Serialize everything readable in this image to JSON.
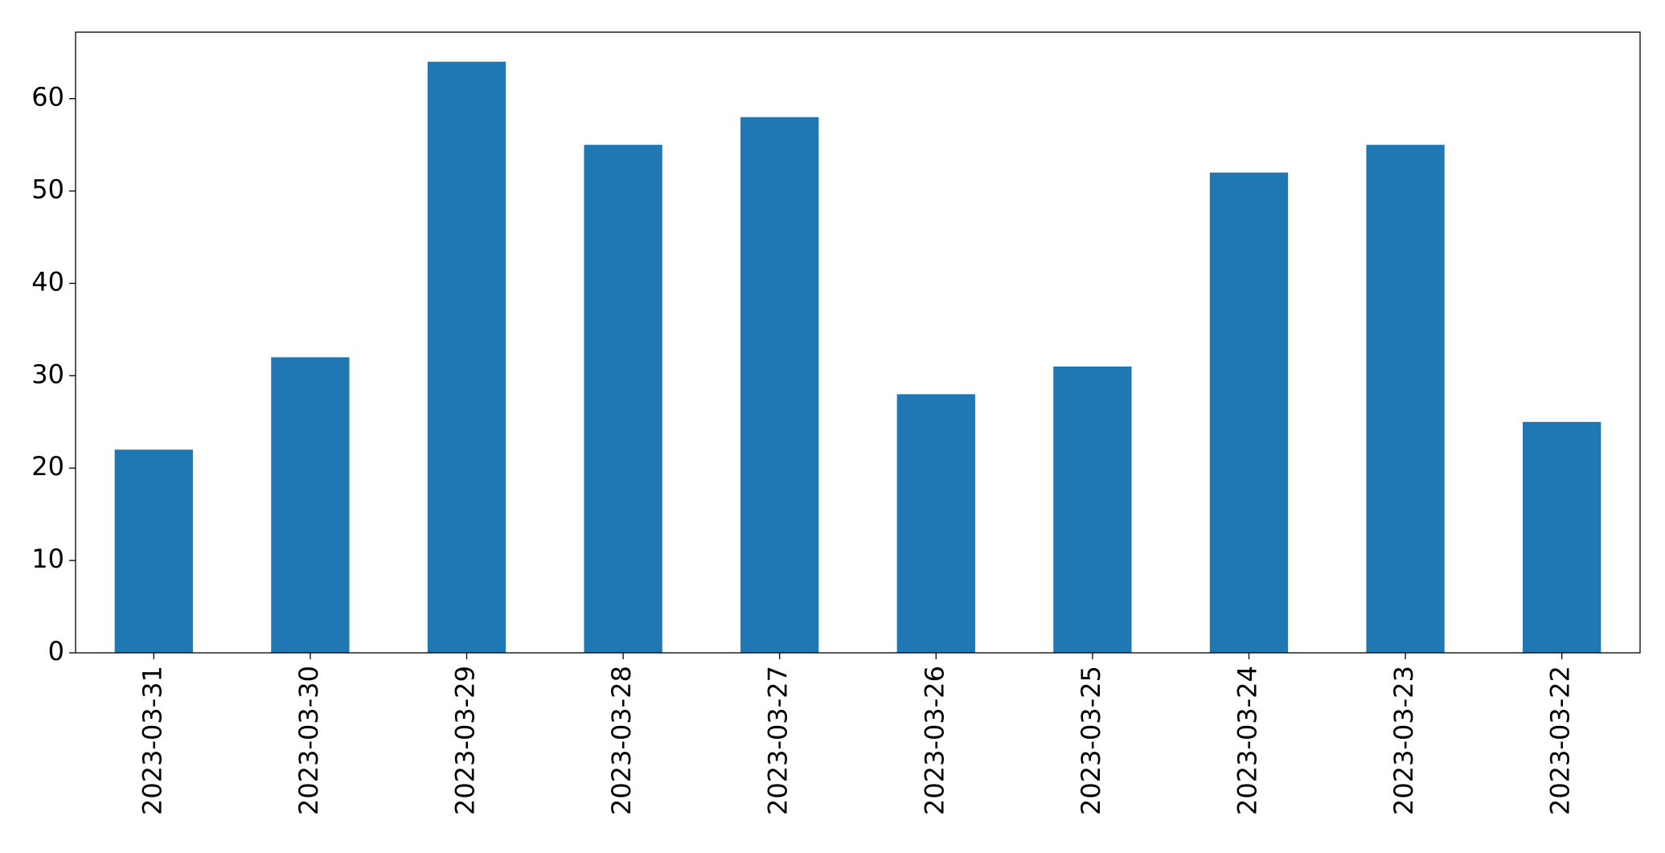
{
  "chart_data": {
    "type": "bar",
    "categories": [
      "2023-03-31",
      "2023-03-30",
      "2023-03-29",
      "2023-03-28",
      "2023-03-27",
      "2023-03-26",
      "2023-03-25",
      "2023-03-24",
      "2023-03-23",
      "2023-03-22"
    ],
    "values": [
      22,
      32,
      64,
      55,
      58,
      28,
      31,
      52,
      55,
      25
    ],
    "color": "#1f77b4",
    "ylim": [
      0,
      67.2
    ],
    "yticks": [
      0,
      10,
      20,
      30,
      40,
      50,
      60
    ],
    "grid": false
  }
}
